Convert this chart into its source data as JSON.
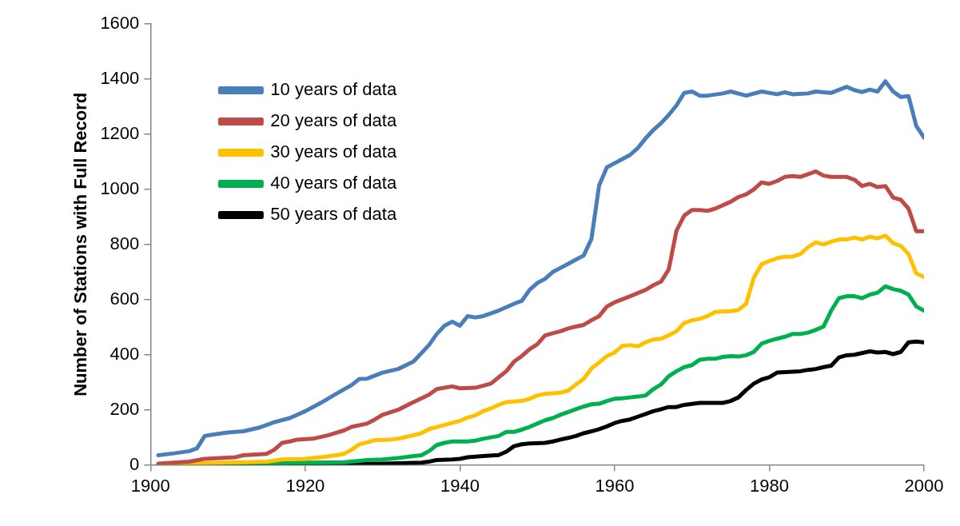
{
  "chart_data": {
    "type": "line",
    "ylabel": "Number of Stations with Full Record",
    "xlim": [
      1900,
      2000
    ],
    "xticks": [
      1900,
      1920,
      1940,
      1960,
      1980,
      2000
    ],
    "ylim": [
      0,
      1600
    ],
    "yticks": [
      0,
      200,
      400,
      600,
      800,
      1000,
      1200,
      1400,
      1600
    ],
    "legend": "top left",
    "marker": "none",
    "line_style": "solid",
    "series": [
      {
        "name": "10 years of data",
        "color": "#4a7ebb",
        "x": [
          1901,
          1903,
          1905,
          1906,
          1907,
          1908,
          1910,
          1912,
          1914,
          1916,
          1918,
          1920,
          1922,
          1924,
          1926,
          1927,
          1928,
          1930,
          1932,
          1934,
          1936,
          1937,
          1938,
          1939,
          1940,
          1941,
          1942,
          1943,
          1945,
          1947,
          1948,
          1949,
          1950,
          1951,
          1952,
          1953,
          1954,
          1955,
          1956,
          1957,
          1958,
          1959,
          1960,
          1961,
          1962,
          1963,
          1964,
          1965,
          1966,
          1967,
          1968,
          1969,
          1970,
          1971,
          1972,
          1974,
          1975,
          1977,
          1979,
          1981,
          1982,
          1983,
          1985,
          1986,
          1988,
          1990,
          1991,
          1992,
          1993,
          1994,
          1995,
          1996,
          1997,
          1998,
          1999,
          2000
        ],
        "values": [
          35,
          42,
          50,
          60,
          105,
          110,
          118,
          122,
          135,
          155,
          170,
          195,
          225,
          258,
          290,
          312,
          313,
          335,
          348,
          375,
          435,
          475,
          505,
          520,
          505,
          540,
          535,
          540,
          560,
          585,
          595,
          635,
          660,
          675,
          700,
          715,
          730,
          745,
          760,
          820,
          1015,
          1080,
          1095,
          1110,
          1125,
          1150,
          1185,
          1215,
          1240,
          1270,
          1305,
          1350,
          1355,
          1340,
          1340,
          1348,
          1355,
          1340,
          1355,
          1345,
          1352,
          1345,
          1348,
          1355,
          1350,
          1372,
          1360,
          1353,
          1362,
          1355,
          1392,
          1355,
          1335,
          1338,
          1230,
          1188
        ]
      },
      {
        "name": "20 years of data",
        "color": "#be4b48",
        "x": [
          1901,
          1905,
          1907,
          1909,
          1911,
          1912,
          1915,
          1916,
          1917,
          1918,
          1919,
          1921,
          1923,
          1925,
          1926,
          1928,
          1929,
          1930,
          1932,
          1934,
          1936,
          1937,
          1938,
          1939,
          1940,
          1942,
          1944,
          1945,
          1946,
          1947,
          1948,
          1949,
          1950,
          1951,
          1952,
          1953,
          1954,
          1955,
          1956,
          1957,
          1958,
          1959,
          1960,
          1962,
          1964,
          1965,
          1966,
          1967,
          1968,
          1969,
          1970,
          1971,
          1972,
          1973,
          1975,
          1976,
          1977,
          1978,
          1979,
          1980,
          1981,
          1982,
          1983,
          1984,
          1986,
          1987,
          1988,
          1990,
          1991,
          1992,
          1993,
          1994,
          1995,
          1996,
          1997,
          1998,
          1999,
          2000
        ],
        "values": [
          5,
          12,
          22,
          25,
          28,
          35,
          40,
          55,
          80,
          85,
          92,
          95,
          108,
          125,
          138,
          150,
          165,
          182,
          200,
          228,
          255,
          275,
          280,
          285,
          278,
          280,
          295,
          318,
          340,
          375,
          395,
          420,
          438,
          470,
          478,
          485,
          495,
          502,
          508,
          525,
          540,
          575,
          590,
          612,
          635,
          652,
          665,
          710,
          850,
          905,
          925,
          925,
          922,
          930,
          955,
          972,
          982,
          1000,
          1025,
          1020,
          1030,
          1045,
          1048,
          1045,
          1065,
          1050,
          1045,
          1045,
          1035,
          1012,
          1020,
          1008,
          1012,
          970,
          962,
          930,
          848,
          848
        ]
      },
      {
        "name": "30 years of data",
        "color": "#ffc000",
        "x": [
          1901,
          1910,
          1915,
          1917,
          1920,
          1922,
          1924,
          1925,
          1926,
          1927,
          1928,
          1929,
          1931,
          1932,
          1934,
          1935,
          1936,
          1938,
          1940,
          1941,
          1942,
          1943,
          1944,
          1945,
          1946,
          1948,
          1949,
          1950,
          1951,
          1953,
          1954,
          1955,
          1956,
          1957,
          1958,
          1959,
          1960,
          1961,
          1962,
          1963,
          1964,
          1965,
          1966,
          1967,
          1968,
          1969,
          1970,
          1971,
          1972,
          1973,
          1975,
          1976,
          1977,
          1978,
          1979,
          1980,
          1981,
          1982,
          1983,
          1984,
          1985,
          1986,
          1987,
          1988,
          1989,
          1990,
          1991,
          1992,
          1993,
          1994,
          1995,
          1996,
          1997,
          1998,
          1999,
          2000
        ],
        "values": [
          3,
          8,
          12,
          20,
          22,
          28,
          35,
          40,
          55,
          75,
          82,
          90,
          92,
          95,
          108,
          115,
          130,
          145,
          160,
          172,
          180,
          195,
          205,
          218,
          228,
          232,
          240,
          252,
          258,
          262,
          270,
          292,
          312,
          350,
          372,
          395,
          408,
          432,
          435,
          430,
          445,
          455,
          458,
          470,
          485,
          515,
          525,
          530,
          540,
          555,
          558,
          562,
          585,
          680,
          728,
          740,
          750,
          755,
          756,
          765,
          790,
          808,
          800,
          810,
          818,
          818,
          825,
          818,
          828,
          822,
          832,
          805,
          795,
          765,
          695,
          682
        ]
      },
      {
        "name": "40 years of data",
        "color": "#00b050",
        "x": [
          1901,
          1915,
          1920,
          1925,
          1927,
          1928,
          1930,
          1932,
          1934,
          1935,
          1936,
          1937,
          1938,
          1939,
          1941,
          1942,
          1943,
          1945,
          1946,
          1947,
          1948,
          1949,
          1950,
          1951,
          1952,
          1953,
          1954,
          1955,
          1956,
          1957,
          1958,
          1959,
          1960,
          1961,
          1962,
          1963,
          1964,
          1965,
          1966,
          1967,
          1968,
          1969,
          1970,
          1971,
          1972,
          1973,
          1974,
          1975,
          1976,
          1977,
          1978,
          1979,
          1980,
          1981,
          1982,
          1983,
          1984,
          1985,
          1986,
          1987,
          1988,
          1989,
          1990,
          1991,
          1992,
          1993,
          1994,
          1995,
          1996,
          1997,
          1998,
          1999,
          2000
        ],
        "values": [
          2,
          6,
          8,
          10,
          15,
          18,
          20,
          25,
          32,
          35,
          50,
          72,
          80,
          85,
          85,
          88,
          95,
          105,
          120,
          120,
          128,
          138,
          150,
          162,
          170,
          182,
          192,
          202,
          212,
          220,
          222,
          232,
          240,
          242,
          245,
          248,
          252,
          275,
          292,
          322,
          340,
          355,
          362,
          382,
          385,
          385,
          392,
          395,
          393,
          398,
          410,
          440,
          450,
          458,
          465,
          475,
          475,
          480,
          490,
          502,
          560,
          605,
          612,
          612,
          605,
          618,
          625,
          648,
          638,
          632,
          618,
          575,
          560
        ]
      },
      {
        "name": "50 years of data",
        "color": "#000000",
        "x": [
          1901,
          1930,
          1935,
          1936,
          1937,
          1939,
          1940,
          1941,
          1943,
          1945,
          1946,
          1947,
          1948,
          1949,
          1951,
          1952,
          1953,
          1954,
          1955,
          1956,
          1957,
          1958,
          1959,
          1960,
          1961,
          1962,
          1963,
          1964,
          1965,
          1966,
          1967,
          1968,
          1969,
          1971,
          1974,
          1975,
          1976,
          1977,
          1978,
          1979,
          1980,
          1981,
          1983,
          1984,
          1985,
          1986,
          1987,
          1988,
          1989,
          1990,
          1991,
          1993,
          1994,
          1995,
          1996,
          1997,
          1998,
          1999,
          2000
        ],
        "values": [
          0,
          5,
          8,
          12,
          18,
          20,
          22,
          28,
          32,
          36,
          48,
          68,
          75,
          78,
          80,
          85,
          92,
          98,
          105,
          115,
          122,
          130,
          140,
          152,
          160,
          165,
          175,
          185,
          195,
          202,
          210,
          210,
          218,
          225,
          225,
          232,
          245,
          272,
          295,
          310,
          318,
          335,
          338,
          340,
          345,
          348,
          355,
          360,
          390,
          398,
          400,
          412,
          408,
          410,
          402,
          410,
          445,
          448,
          445
        ]
      }
    ]
  }
}
